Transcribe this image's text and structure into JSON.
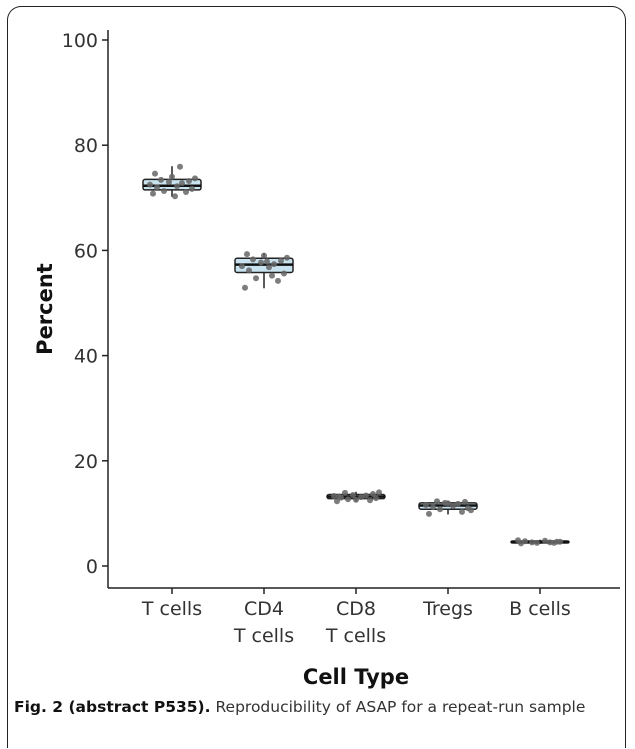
{
  "chart_data": {
    "type": "boxplot",
    "title": "",
    "xlabel": "Cell Type",
    "ylabel": "Percent",
    "ylim": [
      0,
      100
    ],
    "yticks": [
      0,
      20,
      40,
      60,
      80,
      100
    ],
    "categories": [
      [
        "T cells"
      ],
      [
        "CD4",
        "T cells"
      ],
      [
        "CD8",
        "T cells"
      ],
      [
        "Tregs"
      ],
      [
        "B cells"
      ]
    ],
    "box_color": "#c8e3ef",
    "point_color": "#666666",
    "boxes": [
      {
        "category": "T cells",
        "min": 70.2,
        "q1": 71.5,
        "median": 72.3,
        "q3": 73.5,
        "max": 76.0,
        "points": [
          70.8,
          71.1,
          71.3,
          71.7,
          72.0,
          72.2,
          72.5,
          72.8,
          73.0,
          73.2,
          73.4,
          73.7,
          74.0,
          74.6,
          75.9,
          70.3
        ]
      },
      {
        "category": "CD4 T cells",
        "min": 52.8,
        "q1": 55.8,
        "median": 57.3,
        "q3": 58.5,
        "max": 59.5,
        "points": [
          52.9,
          54.2,
          54.7,
          55.6,
          56.2,
          56.8,
          57.0,
          57.4,
          57.7,
          58.0,
          58.3,
          58.6,
          59.0,
          59.3,
          55.2,
          57.9
        ]
      },
      {
        "category": "CD8 T cells",
        "min": 12.2,
        "q1": 12.8,
        "median": 13.2,
        "q3": 13.6,
        "max": 14.1,
        "points": [
          12.3,
          12.5,
          12.7,
          12.9,
          13.0,
          13.1,
          13.3,
          13.4,
          13.5,
          13.7,
          13.9,
          14.0,
          12.6,
          13.2
        ]
      },
      {
        "category": "Tregs",
        "min": 9.8,
        "q1": 10.8,
        "median": 11.5,
        "q3": 12.0,
        "max": 12.4,
        "points": [
          9.9,
          10.3,
          10.8,
          11.0,
          11.2,
          11.4,
          11.6,
          11.8,
          12.0,
          12.2,
          12.3,
          10.6,
          11.9
        ]
      },
      {
        "category": "B cells",
        "min": 4.2,
        "q1": 4.4,
        "median": 4.6,
        "q3": 4.75,
        "max": 5.0,
        "points": [
          4.3,
          4.4,
          4.5,
          4.6,
          4.7,
          4.8,
          4.9,
          4.5,
          4.4,
          4.6
        ]
      }
    ]
  },
  "caption": {
    "bold": "Fig. 2 (abstract P535).",
    "text": " Reproducibility of ASAP for a repeat-run sample"
  }
}
